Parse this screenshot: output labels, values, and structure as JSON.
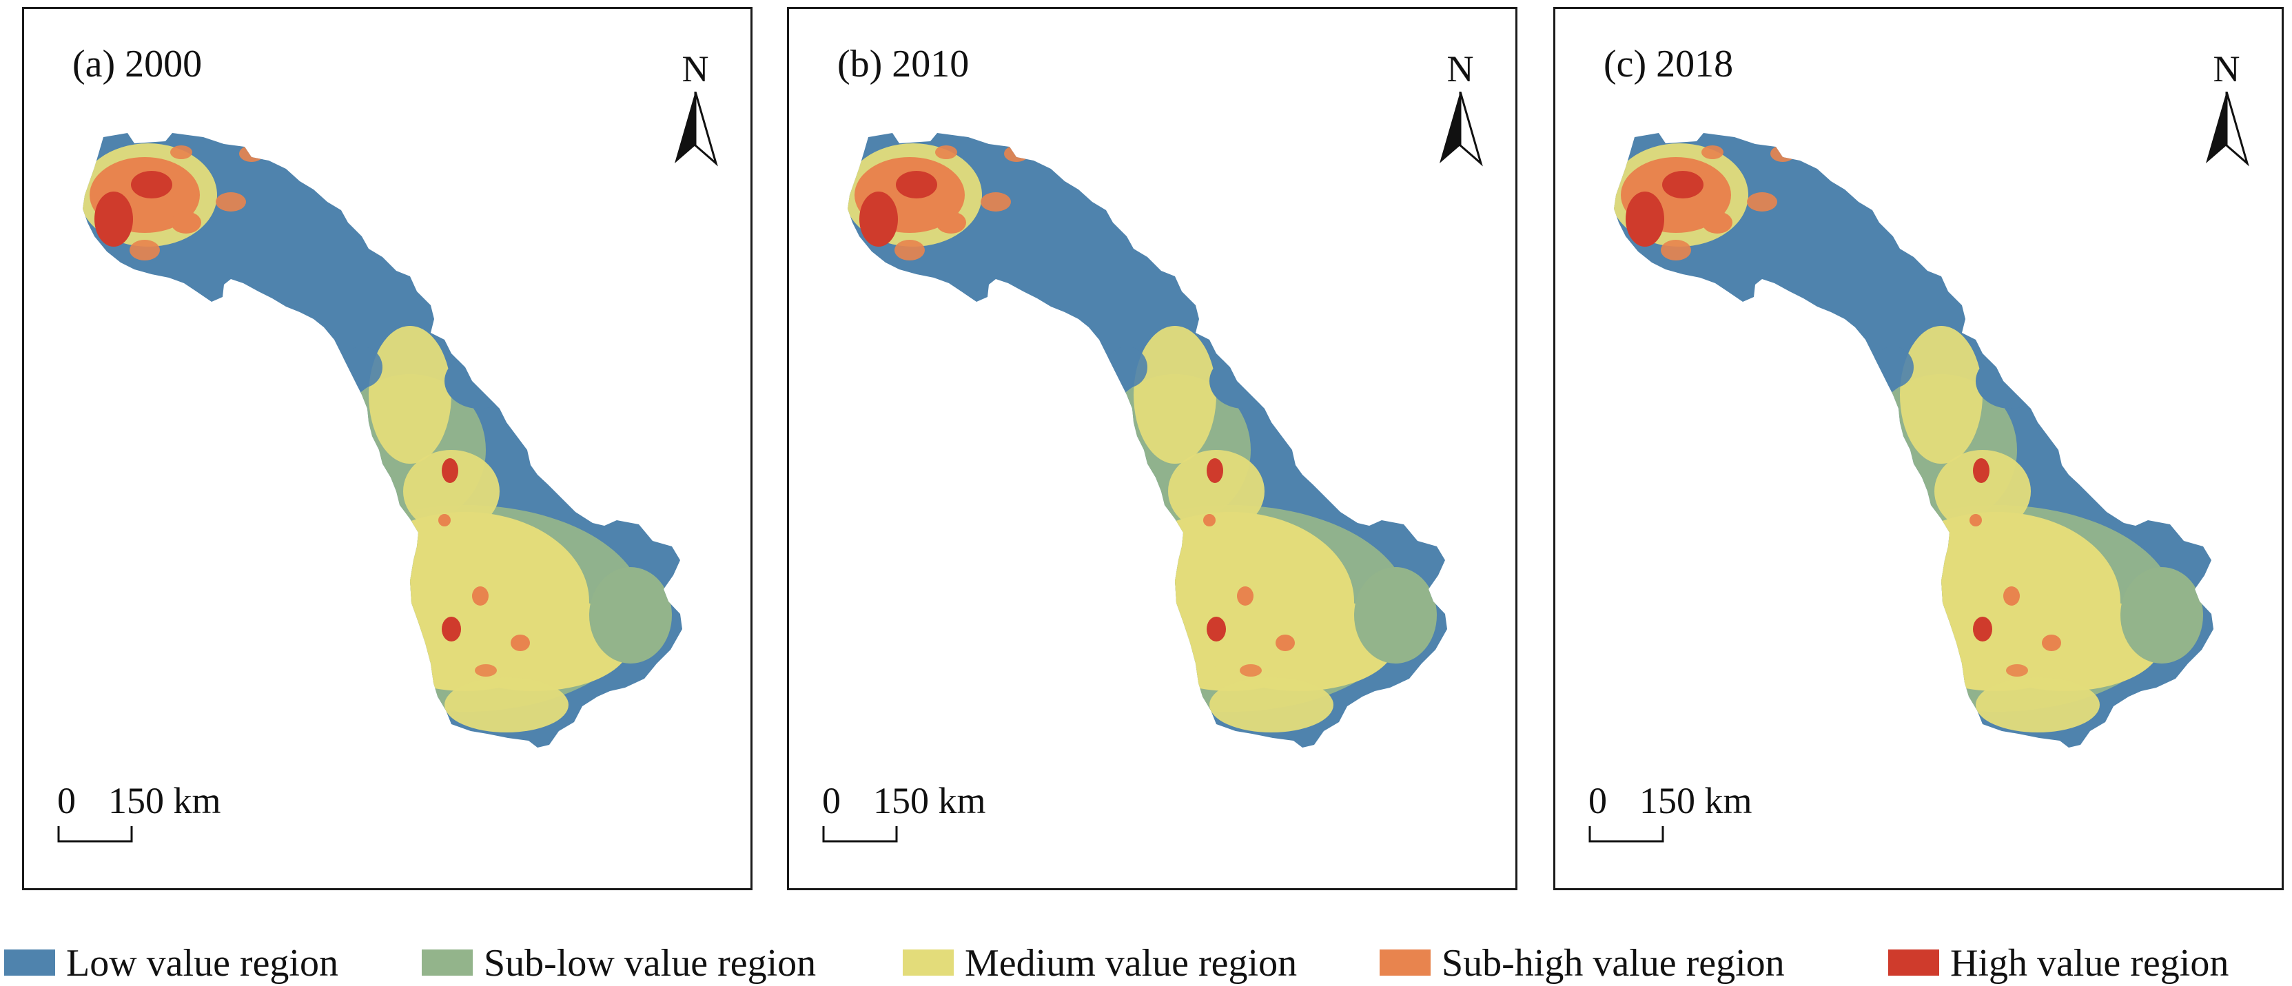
{
  "panels": [
    {
      "title": "(a) 2000",
      "north_label": "N",
      "scale_zero": "0",
      "scale_label": "150 km"
    },
    {
      "title": "(b) 2010",
      "north_label": "N",
      "scale_zero": "0",
      "scale_label": "150 km"
    },
    {
      "title": "(c) 2018",
      "north_label": "N",
      "scale_zero": "0",
      "scale_label": "150 km"
    }
  ],
  "legend": [
    {
      "label": "Low value region",
      "color": "#4f83ad"
    },
    {
      "label": "Sub-low value region",
      "color": "#93b48b"
    },
    {
      "label": "Medium value region",
      "color": "#e3dc7a"
    },
    {
      "label": "Sub-high value region",
      "color": "#e8844e"
    },
    {
      "label": "High value region",
      "color": "#cf3b2c"
    }
  ]
}
